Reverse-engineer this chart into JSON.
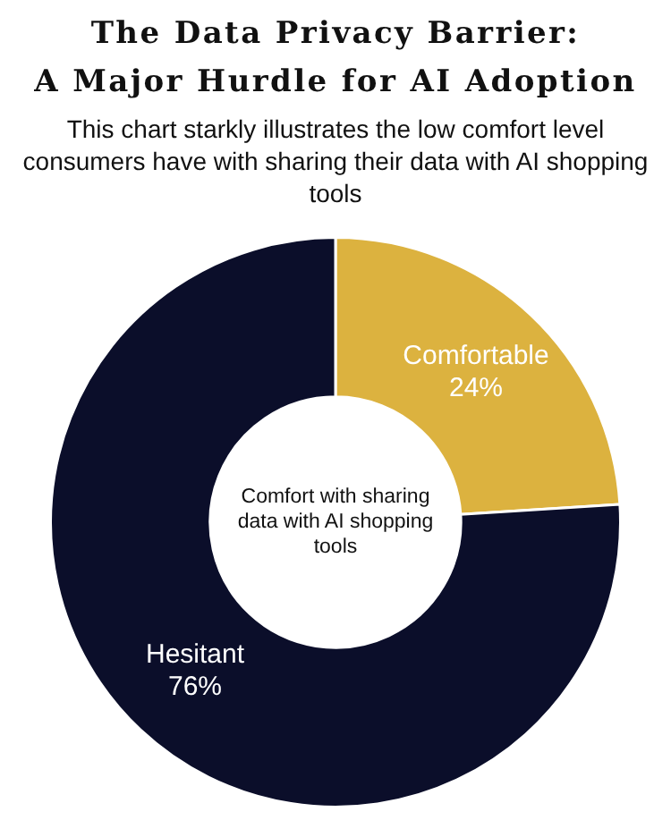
{
  "chart_data": {
    "type": "donut",
    "title": "The Data Privacy Barrier:\nA Major Hurdle for AI Adoption",
    "subtitle": "This chart starkly illustrates the low comfort level consumers have with sharing their data with AI shopping tools",
    "categories": [
      "Comfortable",
      "Hesitant"
    ],
    "values": [
      24,
      76
    ],
    "colors": [
      "#dcb23f",
      "#0b0e2a"
    ],
    "value_labels": [
      "24%",
      "76%"
    ],
    "annotations": [
      "Comfort with sharing data with AI shopping tools"
    ],
    "legend": false
  }
}
